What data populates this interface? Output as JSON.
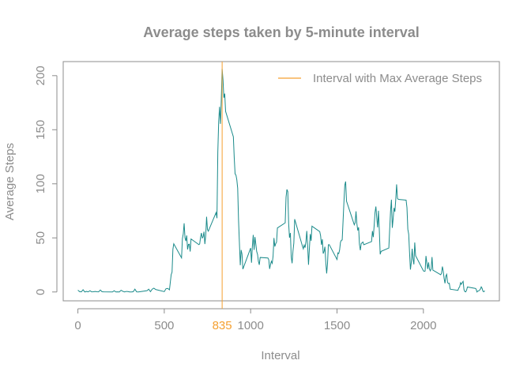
{
  "chart_data": {
    "type": "line",
    "title": "Average steps taken by 5-minute interval",
    "xlabel": "Interval",
    "ylabel": "Average Steps",
    "xlim": [
      -85,
      2440
    ],
    "ylim": [
      -8.2,
      213
    ],
    "x_ticks": [
      0,
      500,
      1000,
      1500,
      2000
    ],
    "y_ticks": [
      0,
      50,
      100,
      150,
      200
    ],
    "grid": false,
    "legend": {
      "placement": "top-right",
      "entries": [
        {
          "label": "Interval with Max Average Steps",
          "color": "#f5a030"
        }
      ]
    },
    "max_marker": {
      "x": 835,
      "label": "835",
      "color": "#f5a030"
    },
    "series": [
      {
        "color": "#1a8a8a",
        "points": [
          [
            0,
            1.7
          ],
          [
            10,
            0.3
          ],
          [
            20,
            0.1
          ],
          [
            30,
            2.1
          ],
          [
            40,
            0
          ],
          [
            50,
            0.5
          ],
          [
            60,
            0.1
          ],
          [
            70,
            1.1
          ],
          [
            80,
            0.1
          ],
          [
            90,
            0.2
          ],
          [
            100,
            0.5
          ],
          [
            110,
            0.2
          ],
          [
            120,
            0.1
          ],
          [
            130,
            1.8
          ],
          [
            140,
            0.2
          ],
          [
            150,
            0.1
          ],
          [
            200,
            0
          ],
          [
            210,
            1.1
          ],
          [
            220,
            0
          ],
          [
            230,
            0.1
          ],
          [
            240,
            0
          ],
          [
            250,
            1.6
          ],
          [
            260,
            0.6
          ],
          [
            270,
            0
          ],
          [
            280,
            0.5
          ],
          [
            290,
            0.4
          ],
          [
            300,
            0
          ],
          [
            310,
            0
          ],
          [
            320,
            0.2
          ],
          [
            330,
            2.6
          ],
          [
            340,
            0.1
          ],
          [
            350,
            0
          ],
          [
            400,
            1.2
          ],
          [
            410,
            2.6
          ],
          [
            420,
            0.3
          ],
          [
            430,
            2.6
          ],
          [
            440,
            3.5
          ],
          [
            450,
            2.3
          ],
          [
            500,
            0.3
          ],
          [
            510,
            3.0
          ],
          [
            520,
            3.3
          ],
          [
            530,
            2.0
          ],
          [
            540,
            16.0
          ],
          [
            545,
            18.3
          ],
          [
            550,
            39.5
          ],
          [
            555,
            44.5
          ],
          [
            600,
            31.5
          ],
          [
            605,
            49.3
          ],
          [
            610,
            53.8
          ],
          [
            615,
            63.5
          ],
          [
            620,
            50.0
          ],
          [
            625,
            47.1
          ],
          [
            630,
            52.2
          ],
          [
            635,
            39.3
          ],
          [
            640,
            44.0
          ],
          [
            645,
            44.2
          ],
          [
            650,
            37.4
          ],
          [
            655,
            49.0
          ],
          [
            700,
            43.8
          ],
          [
            705,
            44.4
          ],
          [
            710,
            50.5
          ],
          [
            715,
            54.5
          ],
          [
            720,
            49.9
          ],
          [
            725,
            51.0
          ],
          [
            730,
            55.7
          ],
          [
            735,
            44.3
          ],
          [
            740,
            52.3
          ],
          [
            745,
            69.5
          ],
          [
            750,
            57.8
          ],
          [
            755,
            56.2
          ],
          [
            800,
            73.4
          ],
          [
            805,
            68.2
          ],
          [
            810,
            129.4
          ],
          [
            815,
            157.5
          ],
          [
            820,
            171.2
          ],
          [
            825,
            155.4
          ],
          [
            830,
            177.3
          ],
          [
            835,
            206.2
          ],
          [
            840,
            195.9
          ],
          [
            845,
            179.6
          ],
          [
            850,
            183.4
          ],
          [
            855,
            167.0
          ],
          [
            900,
            143.5
          ],
          [
            905,
            124.0
          ],
          [
            910,
            109.1
          ],
          [
            915,
            108.1
          ],
          [
            920,
            103.7
          ],
          [
            925,
            95.9
          ],
          [
            930,
            66.2
          ],
          [
            935,
            45.2
          ],
          [
            940,
            24.8
          ],
          [
            945,
            38.8
          ],
          [
            950,
            34.9
          ],
          [
            955,
            21.1
          ],
          [
            1000,
            40.6
          ],
          [
            1005,
            27.0
          ],
          [
            1010,
            42.4
          ],
          [
            1015,
            52.7
          ],
          [
            1020,
            38.9
          ],
          [
            1025,
            50.8
          ],
          [
            1030,
            44.3
          ],
          [
            1035,
            37.4
          ],
          [
            1040,
            34.7
          ],
          [
            1045,
            28.3
          ],
          [
            1050,
            25.1
          ],
          [
            1055,
            31.9
          ],
          [
            1100,
            31.4
          ],
          [
            1105,
            29.7
          ],
          [
            1110,
            21.3
          ],
          [
            1115,
            25.5
          ],
          [
            1120,
            28.4
          ],
          [
            1125,
            26.5
          ],
          [
            1130,
            33.4
          ],
          [
            1135,
            49.9
          ],
          [
            1140,
            42.0
          ],
          [
            1145,
            44.6
          ],
          [
            1150,
            46.0
          ],
          [
            1155,
            59.2
          ],
          [
            1200,
            63.9
          ],
          [
            1205,
            87.7
          ],
          [
            1210,
            94.8
          ],
          [
            1215,
            92.8
          ],
          [
            1220,
            63.4
          ],
          [
            1225,
            50.2
          ],
          [
            1230,
            54.5
          ],
          [
            1235,
            32.4
          ],
          [
            1240,
            26.5
          ],
          [
            1245,
            37.7
          ],
          [
            1250,
            45.1
          ],
          [
            1255,
            67.3
          ],
          [
            1300,
            42.3
          ],
          [
            1305,
            39.9
          ],
          [
            1310,
            43.3
          ],
          [
            1315,
            40.98
          ],
          [
            1320,
            46.2
          ],
          [
            1325,
            56.4
          ],
          [
            1330,
            42.8
          ],
          [
            1335,
            25.1
          ],
          [
            1340,
            39.97
          ],
          [
            1345,
            53.5
          ],
          [
            1350,
            47.3
          ],
          [
            1355,
            60.8
          ],
          [
            1400,
            55.8
          ],
          [
            1405,
            51.96
          ],
          [
            1410,
            43.6
          ],
          [
            1415,
            48.7
          ],
          [
            1420,
            35.5
          ],
          [
            1425,
            37.5
          ],
          [
            1430,
            41.8
          ],
          [
            1435,
            27.5
          ],
          [
            1440,
            17.1
          ],
          [
            1445,
            26.1
          ],
          [
            1450,
            43.6
          ],
          [
            1455,
            43.8
          ],
          [
            1500,
            30.0
          ],
          [
            1505,
            36.1
          ],
          [
            1510,
            35.5
          ],
          [
            1515,
            38.8
          ],
          [
            1520,
            45.96
          ],
          [
            1525,
            47.75
          ],
          [
            1530,
            48.1
          ],
          [
            1535,
            65.3
          ],
          [
            1540,
            82.9
          ],
          [
            1545,
            98.7
          ],
          [
            1550,
            102.1
          ],
          [
            1555,
            83.96
          ],
          [
            1600,
            62.1
          ],
          [
            1605,
            64.1
          ],
          [
            1610,
            74.55
          ],
          [
            1615,
            63.2
          ],
          [
            1620,
            56.9
          ],
          [
            1625,
            59.8
          ],
          [
            1630,
            43.9
          ],
          [
            1635,
            38.6
          ],
          [
            1640,
            44.7
          ],
          [
            1645,
            45.5
          ],
          [
            1650,
            46.2
          ],
          [
            1655,
            43.7
          ],
          [
            1700,
            46.6
          ],
          [
            1705,
            56.3
          ],
          [
            1710,
            50.7
          ],
          [
            1715,
            61.2
          ],
          [
            1720,
            73.4
          ],
          [
            1725,
            79.0
          ],
          [
            1730,
            68.9
          ],
          [
            1735,
            59.7
          ],
          [
            1740,
            75.1
          ],
          [
            1745,
            56.5
          ],
          [
            1750,
            34.8
          ],
          [
            1755,
            37.5
          ],
          [
            1800,
            40.7
          ],
          [
            1805,
            58.0
          ],
          [
            1810,
            74.7
          ],
          [
            1815,
            85.3
          ],
          [
            1820,
            59.3
          ],
          [
            1825,
            67.8
          ],
          [
            1830,
            77.7
          ],
          [
            1835,
            74.2
          ],
          [
            1840,
            85.3
          ],
          [
            1845,
            99.5
          ],
          [
            1850,
            86.6
          ],
          [
            1855,
            85.6
          ],
          [
            1900,
            84.9
          ],
          [
            1905,
            77.8
          ],
          [
            1910,
            58.0
          ],
          [
            1915,
            53.4
          ],
          [
            1920,
            36.3
          ],
          [
            1925,
            20.7
          ],
          [
            1930,
            27.4
          ],
          [
            1935,
            40.0
          ],
          [
            1940,
            30.2
          ],
          [
            1945,
            25.5
          ],
          [
            1950,
            45.7
          ],
          [
            1955,
            33.5
          ],
          [
            2000,
            19.6
          ],
          [
            2005,
            19.0
          ],
          [
            2010,
            19.3
          ],
          [
            2015,
            33.3
          ],
          [
            2020,
            26.8
          ],
          [
            2025,
            21.2
          ],
          [
            2030,
            27.3
          ],
          [
            2035,
            21.3
          ],
          [
            2040,
            19.5
          ],
          [
            2045,
            21.3
          ],
          [
            2050,
            32.3
          ],
          [
            2055,
            20.2
          ],
          [
            2100,
            15.9
          ],
          [
            2105,
            17.2
          ],
          [
            2110,
            23.5
          ],
          [
            2115,
            19.2
          ],
          [
            2120,
            12.5
          ],
          [
            2125,
            8.0
          ],
          [
            2130,
            14.7
          ],
          [
            2135,
            16.3
          ],
          [
            2140,
            8.7
          ],
          [
            2145,
            7.8
          ],
          [
            2150,
            8.1
          ],
          [
            2155,
            2.6
          ],
          [
            2200,
            1.5
          ],
          [
            2205,
            3.7
          ],
          [
            2210,
            4.8
          ],
          [
            2215,
            8.5
          ],
          [
            2220,
            7.1
          ],
          [
            2225,
            8.7
          ],
          [
            2230,
            9.8
          ],
          [
            2235,
            2.2
          ],
          [
            2240,
            0.3
          ],
          [
            2245,
            0.1
          ],
          [
            2250,
            1.6
          ],
          [
            2255,
            4.6
          ],
          [
            2300,
            3.3
          ],
          [
            2305,
            2.8
          ],
          [
            2310,
            0
          ],
          [
            2315,
            0.8
          ],
          [
            2320,
            0.96
          ],
          [
            2325,
            1.6
          ],
          [
            2330,
            2.6
          ],
          [
            2335,
            4.7
          ],
          [
            2340,
            3.3
          ],
          [
            2345,
            0.6
          ],
          [
            2350,
            0.2
          ],
          [
            2355,
            1.1
          ]
        ]
      }
    ]
  }
}
